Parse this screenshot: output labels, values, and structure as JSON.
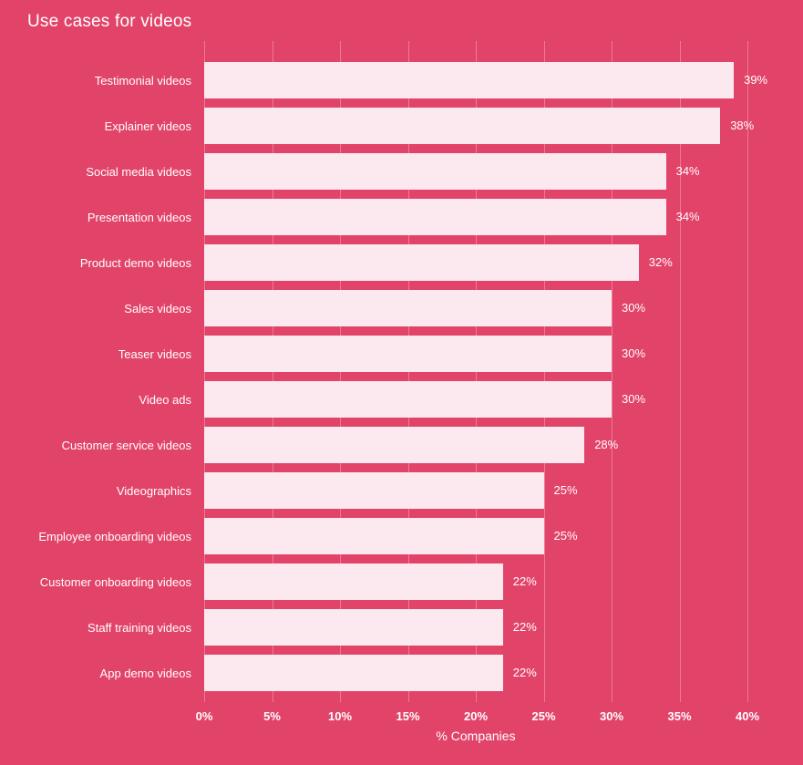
{
  "title": "Use cases for videos",
  "chart_data": {
    "type": "bar",
    "orientation": "horizontal",
    "title": "Use cases for videos",
    "categories": [
      "Testimonial videos",
      "Explainer videos",
      "Social media videos",
      "Presentation videos",
      "Product demo videos",
      "Sales videos",
      "Teaser videos",
      "Video ads",
      "Customer service videos",
      "Videographics",
      "Employee onboarding videos",
      "Customer onboarding videos",
      "Staff training videos",
      "App demo videos"
    ],
    "values": [
      39,
      38,
      34,
      34,
      32,
      30,
      30,
      30,
      28,
      25,
      25,
      22,
      22,
      22
    ],
    "value_labels": [
      "39%",
      "38%",
      "34%",
      "34%",
      "32%",
      "30%",
      "30%",
      "30%",
      "28%",
      "25%",
      "25%",
      "22%",
      "22%",
      "22%"
    ],
    "xlabel": "% Companies",
    "ylabel": "",
    "xlim": [
      0,
      40
    ],
    "xticks": [
      0,
      5,
      10,
      15,
      20,
      25,
      30,
      35,
      40
    ],
    "xtick_labels": [
      "0%",
      "5%",
      "10%",
      "15%",
      "20%",
      "25%",
      "30%",
      "35%",
      "40%"
    ],
    "grid": true,
    "legend": "none",
    "colors": {
      "background": "#e24369",
      "bar": "#fce9f0",
      "grid": "rgba(255,255,255,0.30)",
      "text": "#ffffff"
    }
  }
}
